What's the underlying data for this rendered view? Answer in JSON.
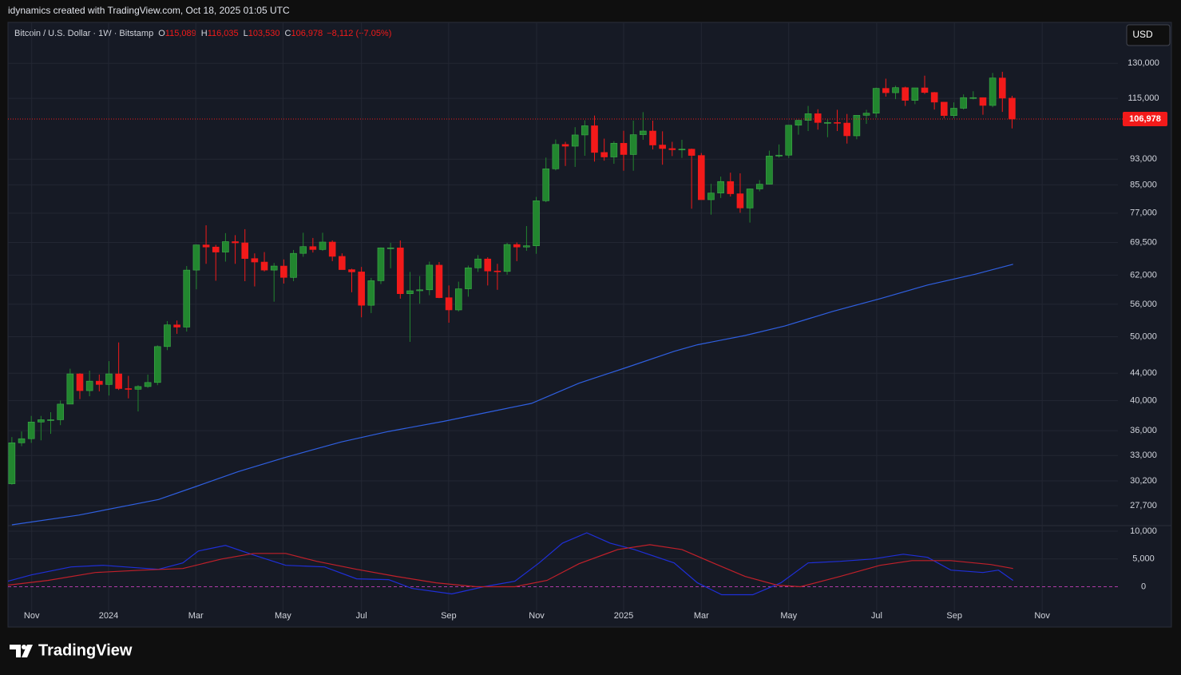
{
  "attribution": "idynamics created with TradingView.com, Oct 18, 2025 01:05 UTC",
  "brand": "TradingView",
  "currency": "USD",
  "chart_data": {
    "type": "candlestick",
    "legend": {
      "symbol": "Bitcoin / U.S. Dollar · 1W · Bitstamp",
      "items": [
        {
          "key": "O",
          "value": "115,089"
        },
        {
          "key": "H",
          "value": "116,035"
        },
        {
          "key": "L",
          "value": "103,530"
        },
        {
          "key": "C",
          "value": "106,978"
        }
      ],
      "change": "−8,112 (−7.05%)"
    },
    "last_label": "106,978",
    "log_scale": true,
    "grid": true,
    "up_color": "#22862f",
    "down_color": "#f21a1a",
    "ylim": [
      25830,
      150000
    ],
    "yticks": [
      {
        "value": 130000,
        "label": "130,000"
      },
      {
        "value": 115000,
        "label": "115,000"
      },
      {
        "value": 93000,
        "label": "93,000"
      },
      {
        "value": 85000,
        "label": "85,000"
      },
      {
        "value": 77000,
        "label": "77,000"
      },
      {
        "value": 69500,
        "label": "69,500"
      },
      {
        "value": 62000,
        "label": "62,000"
      },
      {
        "value": 56000,
        "label": "56,000"
      },
      {
        "value": 50000,
        "label": "50,000"
      },
      {
        "value": 44000,
        "label": "44,000"
      },
      {
        "value": 40000,
        "label": "40,000"
      },
      {
        "value": 36000,
        "label": "36,000"
      },
      {
        "value": 33000,
        "label": "33,000"
      },
      {
        "value": 30200,
        "label": "30,200"
      },
      {
        "value": 27700,
        "label": "27,700"
      }
    ],
    "xlim": [
      -0.4,
      113.9
    ],
    "xticks": [
      {
        "value": 2.04,
        "label": "Nov"
      },
      {
        "value": 9.96,
        "label": "2024"
      },
      {
        "value": 18.94,
        "label": "Mar"
      },
      {
        "value": 27.92,
        "label": "May"
      },
      {
        "value": 36.0,
        "label": "Jul"
      },
      {
        "value": 44.98,
        "label": "Sep"
      },
      {
        "value": 54.04,
        "label": "Nov"
      },
      {
        "value": 63.0,
        "label": "2025"
      },
      {
        "value": 71.0,
        "label": "Mar"
      },
      {
        "value": 80.0,
        "label": "May"
      },
      {
        "value": 89.06,
        "label": "Jul"
      },
      {
        "value": 97.06,
        "label": "Sep"
      },
      {
        "value": 106.1,
        "label": "Nov"
      }
    ],
    "x": [
      0,
      1,
      2,
      3,
      4,
      5,
      6,
      7,
      8,
      9,
      10,
      11,
      12,
      13,
      14,
      15,
      16,
      17,
      18,
      19,
      20,
      21,
      22,
      23,
      24,
      25,
      26,
      27,
      28,
      29,
      30,
      31,
      32,
      33,
      34,
      35,
      36,
      37,
      38,
      39,
      40,
      41,
      42,
      43,
      44,
      45,
      46,
      47,
      48,
      49,
      50,
      51,
      52,
      53,
      54,
      55,
      56,
      57,
      58,
      59,
      60,
      61,
      62,
      63,
      64,
      65,
      66,
      67,
      68,
      69,
      70,
      71,
      72,
      73,
      74,
      75,
      76,
      77,
      78,
      79,
      80,
      81,
      82,
      83,
      84,
      85,
      86,
      87,
      88,
      89,
      90,
      91,
      92,
      93,
      94,
      95,
      96,
      97,
      98,
      99,
      100,
      101,
      102,
      103
    ],
    "open": [
      29900,
      34500,
      35000,
      37100,
      37400,
      37400,
      39500,
      43900,
      41400,
      42800,
      42300,
      43900,
      41700,
      41600,
      42000,
      42600,
      48300,
      52100,
      51700,
      63100,
      68900,
      68400,
      67200,
      69700,
      69400,
      65700,
      64900,
      63100,
      64000,
      61500,
      66900,
      68500,
      67800,
      69600,
      66200,
      63200,
      62700,
      55800,
      60800,
      68200,
      68200,
      58100,
      58700,
      58900,
      64200,
      57300,
      54900,
      59100,
      63600,
      65600,
      62900,
      62800,
      69000,
      68400,
      68700,
      80400,
      89900,
      97900,
      97300,
      101200,
      104500,
      95200,
      93700,
      98300,
      94500,
      101300,
      102600,
      97700,
      96500,
      96100,
      96300,
      94200,
      80700,
      82600,
      86000,
      82400,
      78400,
      83800,
      85200,
      94000,
      94300,
      104700,
      106500,
      109000,
      105700,
      105700,
      105500,
      100900,
      108400,
      109200,
      119100,
      117300,
      119400,
      114200,
      119300,
      117400,
      113500,
      108300,
      111100,
      115300,
      115300,
      112200,
      123500,
      115089
    ],
    "high": [
      35200,
      35900,
      37900,
      37900,
      38400,
      40000,
      44700,
      44000,
      44400,
      43800,
      45900,
      49000,
      43600,
      42200,
      43800,
      48500,
      52800,
      52900,
      64000,
      69000,
      73800,
      68900,
      71800,
      71300,
      72800,
      66900,
      67200,
      64700,
      65500,
      67700,
      71900,
      70600,
      71900,
      70000,
      66900,
      63400,
      63800,
      61400,
      68300,
      69400,
      70000,
      62700,
      61800,
      65000,
      64900,
      59800,
      60600,
      64100,
      66500,
      66000,
      64500,
      69400,
      69500,
      73600,
      81500,
      93500,
      99600,
      98800,
      104000,
      106500,
      108300,
      99900,
      99000,
      102700,
      106400,
      109600,
      106400,
      102500,
      98800,
      99500,
      96500,
      95000,
      85300,
      87500,
      88700,
      88500,
      83900,
      86400,
      95800,
      97900,
      104800,
      106600,
      112000,
      110700,
      106800,
      110500,
      108900,
      108500,
      110500,
      119400,
      123200,
      120200,
      119800,
      119300,
      124500,
      117600,
      113600,
      113400,
      116600,
      117900,
      115400,
      125700,
      126200,
      116035
    ],
    "low": [
      29800,
      34100,
      34500,
      34800,
      35600,
      36700,
      39500,
      40200,
      40600,
      41300,
      40700,
      41500,
      40300,
      38500,
      41800,
      42200,
      47700,
      50500,
      50900,
      59000,
      64500,
      60800,
      65000,
      64500,
      60700,
      59600,
      62800,
      56500,
      60200,
      60700,
      66100,
      67100,
      67500,
      65100,
      63200,
      58400,
      53500,
      54300,
      60100,
      63500,
      57100,
      49100,
      56100,
      57800,
      57200,
      52500,
      54600,
      57500,
      62700,
      59800,
      58900,
      62100,
      65100,
      67500,
      66800,
      80000,
      89400,
      90800,
      90500,
      94100,
      92200,
      92500,
      91500,
      89300,
      89300,
      99500,
      96200,
      91200,
      94000,
      93400,
      78200,
      80700,
      76600,
      81200,
      81600,
      77100,
      74500,
      83100,
      85100,
      93500,
      93400,
      101300,
      102600,
      103100,
      100400,
      102600,
      98200,
      99700,
      105200,
      107500,
      115700,
      114700,
      112000,
      112700,
      116800,
      110600,
      107300,
      107300,
      110600,
      114600,
      108600,
      111500,
      109700,
      103530
    ],
    "close": [
      34500,
      35000,
      37100,
      37400,
      37400,
      39500,
      43900,
      41400,
      42800,
      42300,
      43900,
      41700,
      41600,
      42000,
      42600,
      48300,
      52100,
      51700,
      63100,
      68900,
      68400,
      67200,
      69700,
      69400,
      65700,
      64900,
      63100,
      64000,
      61500,
      66900,
      68500,
      67800,
      69600,
      66200,
      63200,
      62700,
      55800,
      60800,
      68200,
      68200,
      58100,
      58700,
      58900,
      64200,
      57300,
      54900,
      59100,
      63600,
      65600,
      62900,
      62800,
      69000,
      68400,
      68700,
      80400,
      89900,
      97900,
      97300,
      101200,
      104500,
      95200,
      93700,
      98300,
      94500,
      101300,
      102600,
      97700,
      96500,
      96100,
      96300,
      94200,
      80700,
      82600,
      86000,
      82400,
      78400,
      83800,
      85200,
      94000,
      94300,
      104700,
      106500,
      109000,
      105700,
      105700,
      105500,
      100900,
      108400,
      109200,
      119100,
      117300,
      119400,
      114200,
      119300,
      117400,
      113500,
      108300,
      111100,
      115300,
      115300,
      112200,
      123500,
      115089,
      106978
    ],
    "ma": {
      "color": "#2f5fe0",
      "x": [
        0,
        6.9,
        15.1,
        19.2,
        23.3,
        28.2,
        33.9,
        38.8,
        44.5,
        49.4,
        53.5,
        58.4,
        63.3,
        68.2,
        70.6,
        75.5,
        79.6,
        84.5,
        89.4,
        94.3,
        99.2,
        103.1
      ],
      "values": [
        25900,
        26800,
        28300,
        29700,
        31200,
        32800,
        34600,
        35900,
        37200,
        38500,
        39600,
        42500,
        44900,
        47500,
        48600,
        50200,
        51900,
        54600,
        57100,
        59900,
        62200,
        64400
      ]
    },
    "indicator": {
      "y2lim": [
        -7250,
        11000
      ],
      "y2ticks": [
        {
          "value": 10000,
          "label": "10,000"
        },
        {
          "value": 5000,
          "label": "5,000"
        },
        0
      ],
      "zero_color": "#b03aa8",
      "series": [
        {
          "color": "#1f2fd8",
          "axis": "y2",
          "x": [
            -0.4,
            2.0,
            6.1,
            9.4,
            15.1,
            17.6,
            19.2,
            22.0,
            24.9,
            28.2,
            32.2,
            35.5,
            38.8,
            41.2,
            45.3,
            48.6,
            51.8,
            54.3,
            56.7,
            59.2,
            61.6,
            64.1,
            68.2,
            70.6,
            73.1,
            76.3,
            79.2,
            82.0,
            85.3,
            88.6,
            91.8,
            94.3,
            96.7,
            100.0,
            101.6,
            103.1
          ],
          "values": [
            1000,
            2140,
            3570,
            3860,
            3140,
            4290,
            6430,
            7430,
            5710,
            3860,
            3570,
            1430,
            1290,
            -290,
            -1290,
            0,
            1000,
            4290,
            7860,
            9710,
            7860,
            6710,
            4290,
            710,
            -1430,
            -1430,
            710,
            4290,
            4570,
            5000,
            5860,
            5290,
            3000,
            2570,
            3000,
            1140
          ]
        },
        {
          "color": "#c0202a",
          "axis": "y2",
          "x": [
            -0.4,
            3.7,
            8.6,
            13.5,
            17.6,
            21.6,
            24.9,
            28.2,
            31.4,
            35.5,
            39.6,
            43.7,
            47.8,
            51.8,
            55.1,
            58.4,
            62.4,
            65.7,
            69.0,
            72.2,
            75.5,
            78.8,
            81.2,
            85.3,
            89.4,
            92.7,
            96.7,
            100.8,
            103.1
          ],
          "values": [
            290,
            1140,
            2570,
            3000,
            3290,
            5000,
            6000,
            6000,
            4570,
            3140,
            1860,
            710,
            0,
            0,
            1140,
            4140,
            6710,
            7570,
            6710,
            4290,
            1860,
            290,
            0,
            1860,
            3860,
            4710,
            4710,
            4000,
            3290
          ]
        }
      ]
    }
  }
}
